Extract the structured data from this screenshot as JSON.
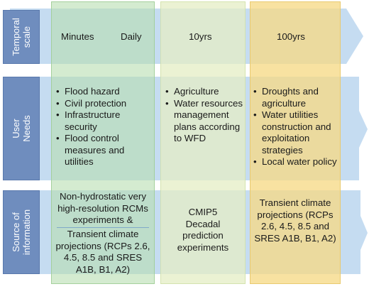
{
  "rows": {
    "temporal": "Temporal scale",
    "user": "User Needs",
    "source": "Source of information"
  },
  "temporal": {
    "minutes": "Minutes",
    "daily": "Daily",
    "ten": "10yrs",
    "hundred": "100yrs"
  },
  "needs": {
    "short": [
      "Flood hazard",
      "Civil protection",
      "Infrastructure security",
      "Flood control measures and utilities"
    ],
    "decadal": [
      "Agriculture",
      "Water resources management plans according to WFD"
    ],
    "century": [
      "Droughts and agriculture",
      "Water utilities construction and exploitation strategies",
      "Local water policy"
    ]
  },
  "sources": {
    "short_a": "Non-hydrostatic very high-resolution RCMs experiments &",
    "short_b": "Transient climate projections (RCPs 2.6, 4.5, 8.5 and SRES A1B, B1, A2)",
    "decadal": "CMIP5 Decadal prediction experiments",
    "century": "Transient climate projections (RCPs 2.6, 4.5, 8.5 and  SRES A1B, B1, A2)"
  },
  "colors": {
    "arrow": "#c5dcf1",
    "rowhead": "#6f8dbe",
    "col_short": "#b8deb0",
    "col_decadal": "#e4eec4",
    "col_century": "#f6da87"
  }
}
